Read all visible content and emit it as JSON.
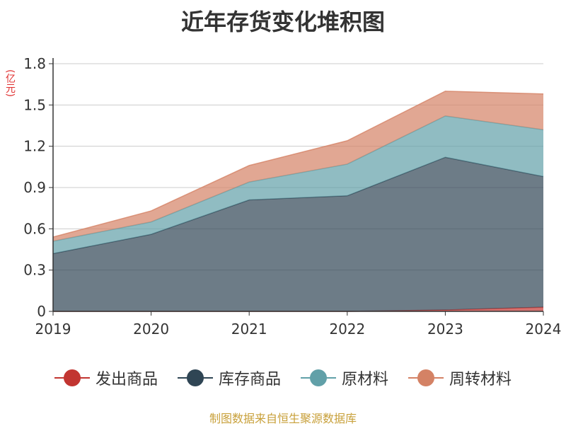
{
  "chart_data": {
    "type": "area",
    "stacked": true,
    "title": "近年存货变化堆积图",
    "unit": "(亿元)",
    "x": [
      "2019",
      "2020",
      "2021",
      "2022",
      "2023",
      "2024"
    ],
    "y_ticks": [
      "0",
      "0.3",
      "0.6",
      "0.9",
      "1.2",
      "1.5",
      "1.8"
    ],
    "ylim": [
      0,
      1.8
    ],
    "grid": true,
    "legend_position": "bottom",
    "series": [
      {
        "name": "发出商品",
        "color": "#c23531",
        "values": [
          0,
          0,
          0,
          0,
          0.01,
          0.03
        ]
      },
      {
        "name": "库存商品",
        "color": "#2f4554",
        "values": [
          0.42,
          0.56,
          0.81,
          0.84,
          1.11,
          0.95
        ]
      },
      {
        "name": "原材料",
        "color": "#61a0a8",
        "values": [
          0.09,
          0.09,
          0.13,
          0.23,
          0.3,
          0.34
        ]
      },
      {
        "name": "周转材料",
        "color": "#d48265",
        "values": [
          0.03,
          0.08,
          0.12,
          0.17,
          0.18,
          0.26
        ]
      }
    ],
    "source": "制图数据来自恒生聚源数据库"
  }
}
